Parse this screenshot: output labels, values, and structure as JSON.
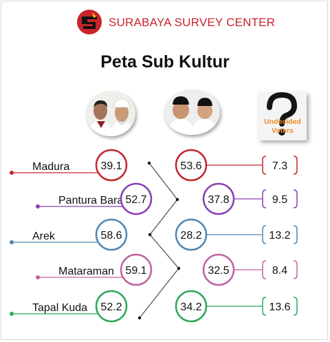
{
  "header": {
    "brand_name": "SURABAYA SURVEY CENTER",
    "title": "Peta Sub Kultur"
  },
  "candidates": [
    {
      "group": "pair-1",
      "photo_icon": "candidate-pair-1-photo"
    },
    {
      "group": "pair-2",
      "photo_icon": "candidate-pair-2-photo"
    },
    {
      "group": "undecided",
      "line1": "Undecided",
      "line2": "Voters",
      "icon": "question-mark-icon"
    }
  ],
  "colors": {
    "brand_red": "#c8232c",
    "undecided_orange": "#ef8a2a",
    "Madura": "#c8232c",
    "Pantura Barat": "#8a3fb4",
    "Arek": "#4f86b3",
    "Mataraman": "#c060a0",
    "Tapal Kuda": "#2aa85b"
  },
  "chart_data": {
    "type": "table",
    "title": "Peta Sub Kultur",
    "categories": [
      "Madura",
      "Pantura Barat",
      "Arek",
      "Mataraman",
      "Tapal Kuda"
    ],
    "series": [
      {
        "values": [
          39.1,
          52.7,
          58.6,
          59.1,
          52.2
        ]
      },
      {
        "values": [
          53.6,
          37.8,
          28.2,
          32.5,
          34.2
        ]
      },
      {
        "name": "Undecided Voters",
        "values": [
          7.3,
          9.5,
          13.2,
          8.4,
          13.6
        ]
      }
    ],
    "labels": [
      [
        "39.1",
        "52.7",
        "58.6",
        "59.1",
        "52.2"
      ],
      [
        "53.6",
        "37.8",
        "28.2",
        "32.5",
        "34.2"
      ],
      [
        "7.3",
        "9.5",
        "13.2",
        "8.4",
        "13.6"
      ]
    ]
  }
}
